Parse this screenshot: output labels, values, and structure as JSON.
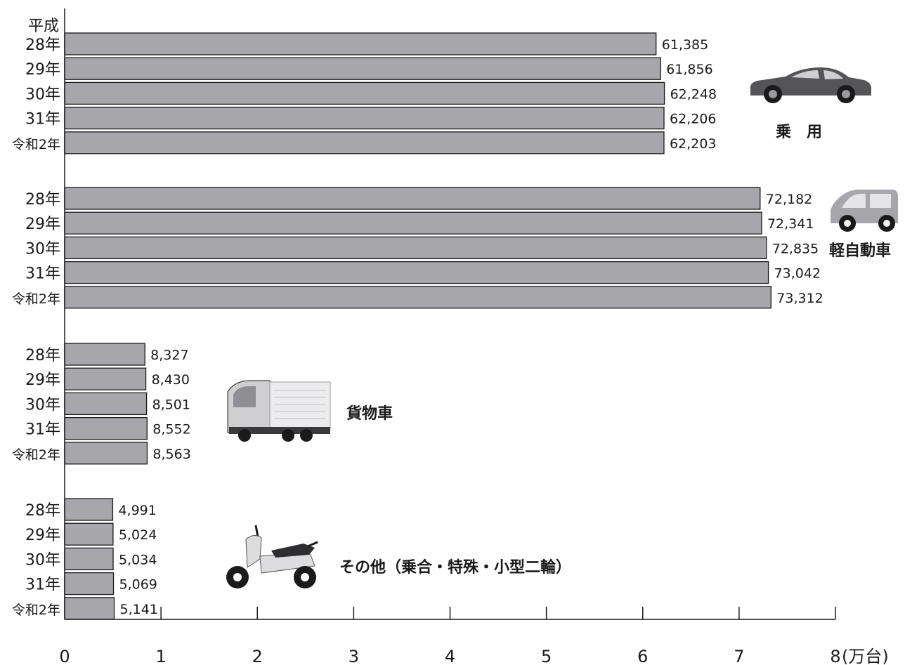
{
  "chart_data": {
    "type": "bar",
    "orientation": "horizontal",
    "era_label": "平成",
    "x_unit_label": "(万台)",
    "xlim": [
      0,
      8
    ],
    "x_ticks": [
      "0",
      "1",
      "2",
      "3",
      "4",
      "5",
      "6",
      "7",
      "8"
    ],
    "category_labels": [
      "28年",
      "29年",
      "30年",
      "31年",
      "令和2年"
    ],
    "groups": [
      {
        "name": "乗　用",
        "values": [
          61385,
          61856,
          62248,
          62206,
          62203
        ],
        "value_labels": [
          "61,385",
          "61,856",
          "62,248",
          "62,206",
          "62,203"
        ],
        "icon": "sedan-car-icon"
      },
      {
        "name": "軽自動車",
        "values": [
          72182,
          72341,
          72835,
          73042,
          73312
        ],
        "value_labels": [
          "72,182",
          "72,341",
          "72,835",
          "73,042",
          "73,312"
        ],
        "icon": "kei-car-icon"
      },
      {
        "name": "貨物車",
        "values": [
          8327,
          8430,
          8501,
          8552,
          8563
        ],
        "value_labels": [
          "8,327",
          "8,430",
          "8,501",
          "8,552",
          "8,563"
        ],
        "icon": "truck-icon"
      },
      {
        "name": "その他（乗合・特殊・小型二輪）",
        "values": [
          4991,
          5024,
          5034,
          5069,
          5141
        ],
        "value_labels": [
          "4,991",
          "5,024",
          "5,034",
          "5,069",
          "5,141"
        ],
        "icon": "scooter-icon"
      }
    ]
  }
}
